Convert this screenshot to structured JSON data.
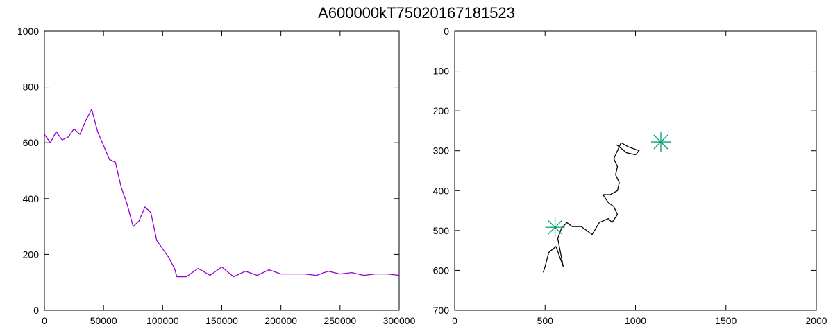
{
  "figure": {
    "title": "A600000kT75020167181523"
  },
  "chart_data": [
    {
      "type": "line",
      "title": "",
      "xlabel": "",
      "ylabel": "",
      "xlim": [
        0,
        300000
      ],
      "ylim": [
        0,
        1000
      ],
      "x_ticks": [
        0,
        50000,
        100000,
        150000,
        200000,
        250000,
        300000
      ],
      "x_tick_labels": [
        "0",
        "50000",
        "100000",
        "150000",
        "200000",
        "250000",
        "300000"
      ],
      "y_ticks": [
        0,
        200,
        400,
        600,
        800,
        1000
      ],
      "y_tick_labels": [
        "0",
        "200",
        "400",
        "600",
        "800",
        "1000"
      ],
      "grid": false,
      "series": [
        {
          "color": "#9400d3",
          "x": [
            0,
            5000,
            10000,
            15000,
            20000,
            25000,
            30000,
            35000,
            40000,
            45000,
            50000,
            55000,
            60000,
            65000,
            70000,
            75000,
            80000,
            85000,
            90000,
            95000,
            100000,
            105000,
            110000,
            112000,
            120000,
            130000,
            140000,
            150000,
            160000,
            170000,
            180000,
            190000,
            200000,
            210000,
            220000,
            230000,
            240000,
            250000,
            260000,
            270000,
            280000,
            290000,
            300000
          ],
          "y": [
            630,
            600,
            640,
            610,
            620,
            650,
            630,
            680,
            720,
            640,
            590,
            540,
            530,
            440,
            380,
            300,
            320,
            370,
            350,
            250,
            220,
            190,
            150,
            120,
            120,
            150,
            125,
            155,
            120,
            140,
            125,
            145,
            130,
            130,
            130,
            125,
            140,
            130,
            135,
            125,
            130,
            130,
            125
          ]
        }
      ]
    },
    {
      "type": "scatter",
      "title": "",
      "xlabel": "",
      "ylabel": "",
      "xlim": [
        0,
        2000
      ],
      "ylim": [
        700,
        0
      ],
      "y_inverted": true,
      "x_ticks": [
        0,
        500,
        1000,
        1500,
        2000
      ],
      "x_tick_labels": [
        "0",
        "500",
        "1000",
        "1500",
        "2000"
      ],
      "y_ticks": [
        0,
        100,
        200,
        300,
        400,
        500,
        600,
        700
      ],
      "y_tick_labels": [
        "0",
        "100",
        "200",
        "300",
        "400",
        "500",
        "600",
        "700"
      ],
      "grid": false,
      "series": [
        {
          "kind": "path",
          "color": "#000000",
          "x": [
            490,
            500,
            520,
            560,
            580,
            600,
            570,
            590,
            620,
            650,
            700,
            760,
            800,
            850,
            870,
            900,
            880,
            850,
            820,
            860,
            900,
            910,
            890,
            900,
            880,
            900,
            920,
            960,
            1020,
            1000,
            950,
            910,
            895
          ],
          "y": [
            605,
            590,
            555,
            540,
            565,
            590,
            520,
            495,
            480,
            490,
            490,
            510,
            480,
            470,
            480,
            460,
            440,
            430,
            410,
            410,
            400,
            380,
            360,
            340,
            320,
            300,
            280,
            290,
            300,
            310,
            305,
            290,
            285
          ]
        },
        {
          "kind": "marker",
          "marker": "asterisk",
          "color": "#009e73",
          "x": [
            555,
            1140
          ],
          "y": [
            492,
            278
          ]
        }
      ]
    }
  ]
}
